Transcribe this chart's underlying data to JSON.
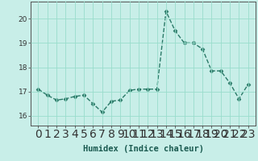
{
  "x": [
    0,
    1,
    2,
    3,
    4,
    5,
    6,
    7,
    8,
    9,
    10,
    11,
    12,
    13,
    14,
    15,
    16,
    17,
    18,
    19,
    20,
    21,
    22,
    23
  ],
  "y": [
    17.1,
    16.85,
    16.65,
    16.7,
    16.8,
    16.85,
    16.5,
    16.15,
    16.6,
    16.65,
    17.05,
    17.1,
    17.1,
    17.1,
    20.3,
    19.5,
    19.0,
    19.0,
    18.75,
    17.85,
    17.85,
    17.35,
    16.7,
    17.3
  ],
  "line_color": "#2a7a68",
  "marker": "D",
  "markersize": 2.5,
  "linewidth": 1.0,
  "bg_color": "#c8eee8",
  "grid_color": "#99ddcc",
  "xlabel": "Humidex (Indice chaleur)",
  "ylim": [
    15.6,
    20.7
  ],
  "yticks": [
    16,
    17,
    18,
    19,
    20
  ],
  "xticks": [
    0,
    1,
    2,
    3,
    4,
    5,
    6,
    7,
    8,
    9,
    10,
    11,
    12,
    13,
    14,
    15,
    16,
    17,
    18,
    19,
    20,
    21,
    22,
    23
  ],
  "xlabel_fontsize": 7.5,
  "tick_fontsize": 6.5
}
